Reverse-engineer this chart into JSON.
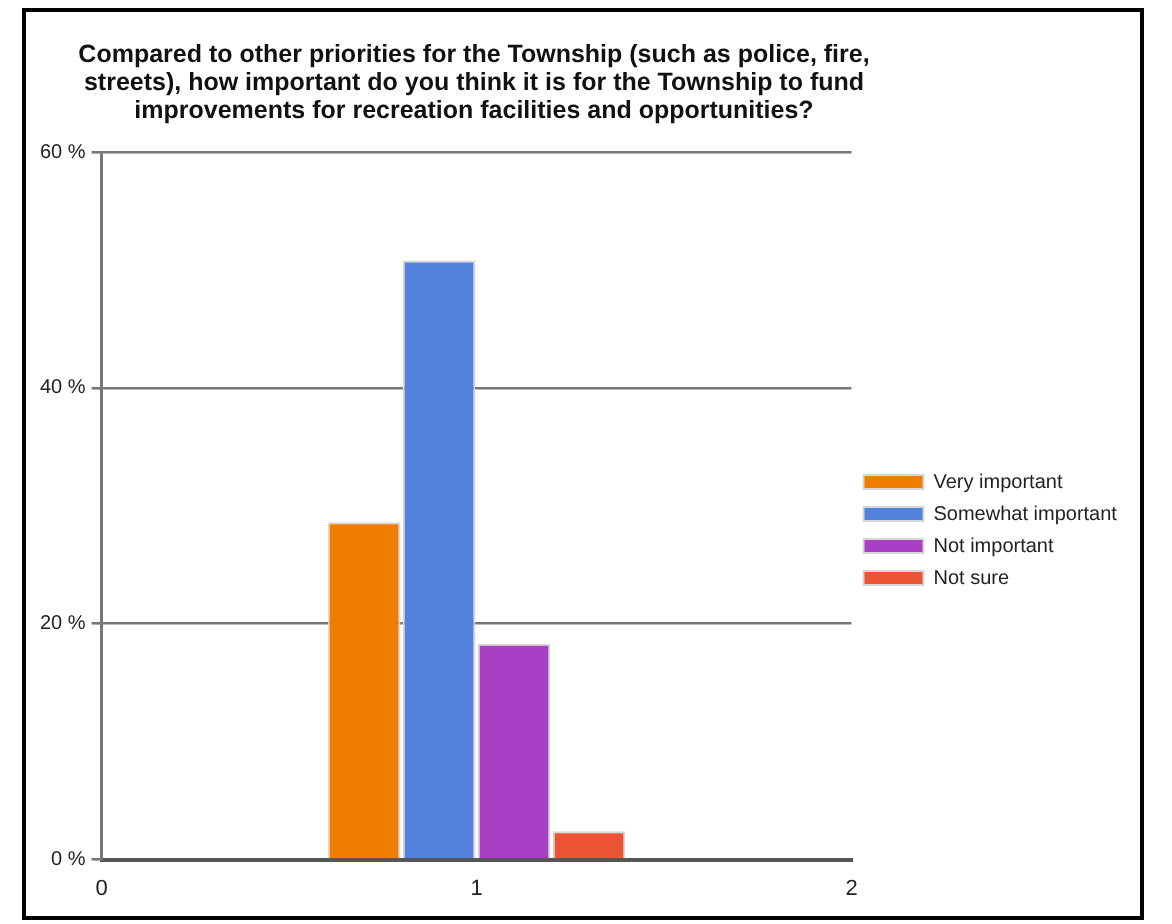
{
  "chart_data": {
    "type": "bar",
    "title": "Compared to other priorities for the Township (such as police, fire, streets), how important do you think it is for the Township to fund improvements for recreation facilities and opportunities?",
    "categories": [
      "0",
      "1",
      "2"
    ],
    "series": [
      {
        "name": "Very important",
        "color": "#ef7d00",
        "values": [
          null,
          28.6,
          null
        ]
      },
      {
        "name": "Somewhat important",
        "color": "#5282dc",
        "values": [
          null,
          50.8,
          null
        ]
      },
      {
        "name": "Not important",
        "color": "#a83fc4",
        "values": [
          null,
          18.3,
          null
        ]
      },
      {
        "name": "Not sure",
        "color": "#ec5436",
        "values": [
          null,
          2.4,
          null
        ]
      }
    ],
    "ylim": [
      0,
      60
    ],
    "yticks": [
      {
        "value": 0,
        "label": "0 %"
      },
      {
        "value": 20,
        "label": "20 %"
      },
      {
        "value": 40,
        "label": "40 %"
      },
      {
        "value": 60,
        "label": "60 %"
      }
    ],
    "grid": "y",
    "legend": "right"
  }
}
